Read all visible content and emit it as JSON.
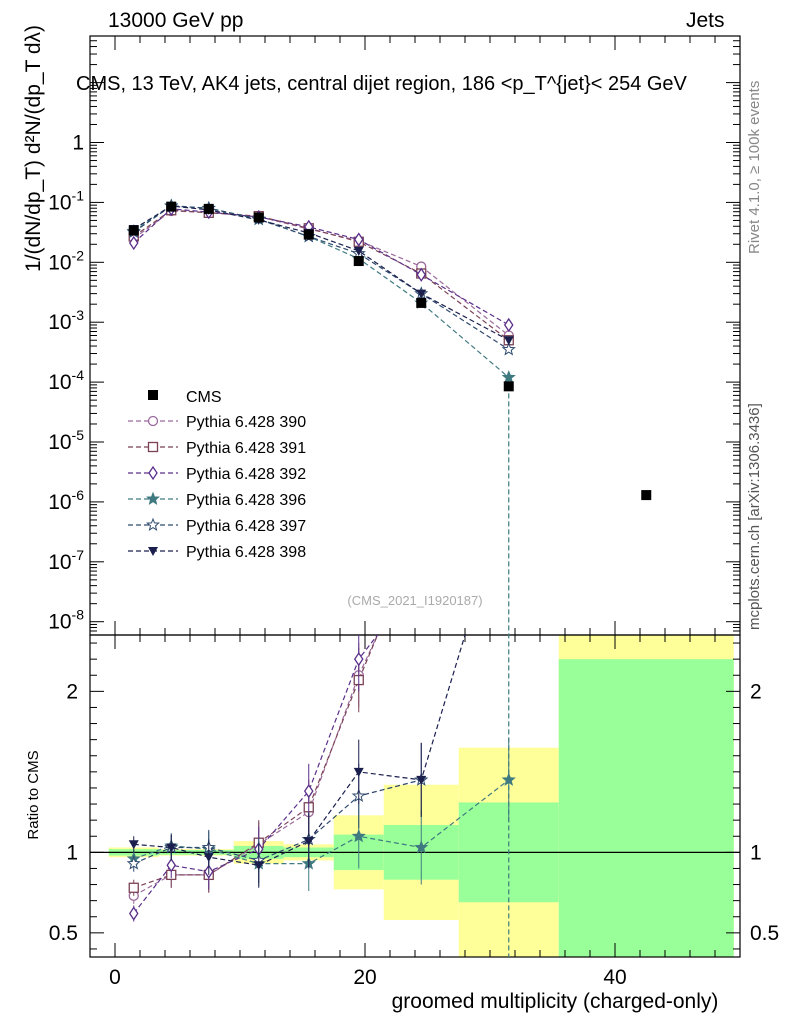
{
  "header": {
    "energy": "13000 GeV pp",
    "category": "Jets"
  },
  "side_labels": {
    "rivet": "Rivet 4.1.0, ≥ 100k events",
    "mcplots": "mcplots.cern.ch [arXiv:1306.3436]"
  },
  "chart_data": [
    {
      "type": "line",
      "panel": "main",
      "title": "CMS, 13 TeV, AK4 jets, central dijet region, 186 <p_T^{jet}< 254 GeV",
      "ylabel": "1/(dN/dp_T) d²N/(dp_T dλ)",
      "yscale": "log",
      "ylim": [
        6e-09,
        60
      ],
      "xlim": [
        -2,
        50
      ],
      "ytick_labels": [
        "10^{-8}",
        "10^{-7}",
        "10^{-6}",
        "10^{-5}",
        "10^{-4}",
        "10^{-3}",
        "10^{-2}",
        "10^{-1}",
        "1"
      ],
      "watermark": "(CMS_2021_I1920187)",
      "legend_position": "middle-left",
      "data": {
        "name": "CMS",
        "x": [
          1.5,
          4.5,
          7.5,
          11.5,
          15.5,
          19.5,
          24.5,
          31.5,
          42.5
        ],
        "y": [
          0.034,
          0.085,
          0.078,
          0.056,
          0.029,
          0.0105,
          0.0021,
          8.5e-05,
          1.3e-06
        ]
      },
      "series": [
        {
          "name": "Pythia 6.428 390",
          "color": "#9b6a9b",
          "marker": "open-circle",
          "x": [
            1.5,
            4.5,
            7.5,
            11.5,
            15.5,
            19.5,
            24.5,
            31.5
          ],
          "y": [
            0.025,
            0.072,
            0.068,
            0.058,
            0.036,
            0.023,
            0.0085,
            0.0006
          ]
        },
        {
          "name": "Pythia 6.428 391",
          "color": "#7a4256",
          "marker": "open-square",
          "x": [
            1.5,
            4.5,
            7.5,
            11.5,
            15.5,
            19.5,
            24.5,
            31.5
          ],
          "y": [
            0.027,
            0.074,
            0.067,
            0.059,
            0.037,
            0.022,
            0.0065,
            0.0005
          ]
        },
        {
          "name": "Pythia 6.428 392",
          "color": "#5a2f8a",
          "marker": "open-diamond",
          "x": [
            1.5,
            4.5,
            7.5,
            11.5,
            15.5,
            19.5,
            24.5,
            31.5
          ],
          "y": [
            0.021,
            0.078,
            0.069,
            0.057,
            0.039,
            0.024,
            0.0062,
            0.0009
          ]
        },
        {
          "name": "Pythia 6.428 396",
          "color": "#3f7a80",
          "marker": "filled-star",
          "x": [
            1.5,
            4.5,
            7.5,
            11.5,
            15.5,
            19.5,
            24.5,
            31.5
          ],
          "y": [
            0.033,
            0.088,
            0.08,
            0.052,
            0.027,
            0.0115,
            0.0021,
            0.00012
          ]
        },
        {
          "name": "Pythia 6.428 397",
          "color": "#2e4a6e",
          "marker": "open-star",
          "x": [
            1.5,
            4.5,
            7.5,
            11.5,
            15.5,
            19.5,
            24.5,
            31.5
          ],
          "y": [
            0.032,
            0.087,
            0.08,
            0.053,
            0.027,
            0.014,
            0.003,
            0.00035
          ]
        },
        {
          "name": "Pythia 6.428 398",
          "color": "#1a1f4d",
          "marker": "filled-triangle-down",
          "x": [
            1.5,
            4.5,
            7.5,
            11.5,
            15.5,
            19.5,
            24.5,
            31.5
          ],
          "y": [
            0.036,
            0.087,
            0.075,
            0.051,
            0.031,
            0.0155,
            0.003,
            0.0005
          ]
        }
      ]
    },
    {
      "type": "line",
      "panel": "ratio",
      "ylabel": "Ratio to CMS",
      "xlabel": "groomed multiplicity (charged-only)",
      "ylim": [
        0.35,
        2.35
      ],
      "xlim": [
        -2,
        50
      ],
      "yticks": [
        0.5,
        1,
        2
      ],
      "ytick_labels": [
        "0.5",
        "1",
        "2"
      ],
      "xticks": [
        0,
        20,
        40
      ],
      "xtick_labels": [
        "0",
        "20",
        "40"
      ],
      "uncertainty_bands": [
        {
          "x0": -0.5,
          "x1": 3.5,
          "inner": [
            0.98,
            1.02
          ],
          "outer": [
            0.97,
            1.03
          ]
        },
        {
          "x0": 3.5,
          "x1": 9.5,
          "inner": [
            0.985,
            1.015
          ],
          "outer": [
            0.98,
            1.02
          ]
        },
        {
          "x0": 9.5,
          "x1": 13.5,
          "inner": [
            0.96,
            1.04
          ],
          "outer": [
            0.93,
            1.07
          ]
        },
        {
          "x0": 13.5,
          "x1": 17.5,
          "inner": [
            0.97,
            1.03
          ],
          "outer": [
            0.95,
            1.05
          ]
        },
        {
          "x0": 17.5,
          "x1": 21.5,
          "inner": [
            0.89,
            1.11
          ],
          "outer": [
            0.77,
            1.23
          ]
        },
        {
          "x0": 21.5,
          "x1": 27.5,
          "inner": [
            0.83,
            1.17
          ],
          "outer": [
            0.58,
            1.42
          ]
        },
        {
          "x0": 27.5,
          "x1": 35.5,
          "inner": [
            0.69,
            1.31
          ],
          "outer": [
            0.35,
            1.65
          ]
        },
        {
          "x0": 35.5,
          "x1": 49.5,
          "inner": [
            0.35,
            2.2
          ],
          "outer": [
            0.35,
            2.35
          ]
        }
      ],
      "series": [
        {
          "name": "Pythia 6.428 390",
          "x": [
            1.5,
            4.5,
            7.5,
            11.5,
            15.5,
            19.5,
            21.0
          ],
          "y": [
            0.73,
            0.86,
            0.86,
            1.05,
            1.25,
            2.1,
            2.35
          ]
        },
        {
          "name": "Pythia 6.428 391",
          "x": [
            1.5,
            4.5,
            7.5,
            11.5,
            15.5,
            19.5,
            21.0
          ],
          "y": [
            0.78,
            0.86,
            0.86,
            1.06,
            1.28,
            2.07,
            2.35
          ]
        },
        {
          "name": "Pythia 6.428 392",
          "x": [
            1.5,
            4.5,
            7.5,
            11.5,
            15.5,
            19.5,
            21.0
          ],
          "y": [
            0.62,
            0.92,
            0.88,
            1.02,
            1.38,
            2.2,
            2.35
          ]
        },
        {
          "name": "Pythia 6.428 396",
          "x": [
            1.5,
            4.5,
            7.5,
            11.5,
            15.5,
            19.5,
            24.5,
            31.5
          ],
          "y": [
            0.96,
            1.04,
            1.02,
            0.93,
            0.93,
            1.1,
            1.03,
            1.45
          ]
        },
        {
          "name": "Pythia 6.428 397",
          "x": [
            1.5,
            4.5,
            7.5,
            11.5,
            15.5,
            19.5,
            24.5
          ],
          "y": [
            0.93,
            1.03,
            1.03,
            0.95,
            1.08,
            1.35,
            1.45
          ]
        },
        {
          "name": "Pythia 6.428 398",
          "x": [
            1.5,
            4.5,
            7.5,
            11.5,
            15.5,
            19.5,
            24.5,
            28.0
          ],
          "y": [
            1.05,
            1.03,
            0.97,
            0.92,
            1.07,
            1.5,
            1.45,
            2.35
          ]
        }
      ]
    }
  ]
}
